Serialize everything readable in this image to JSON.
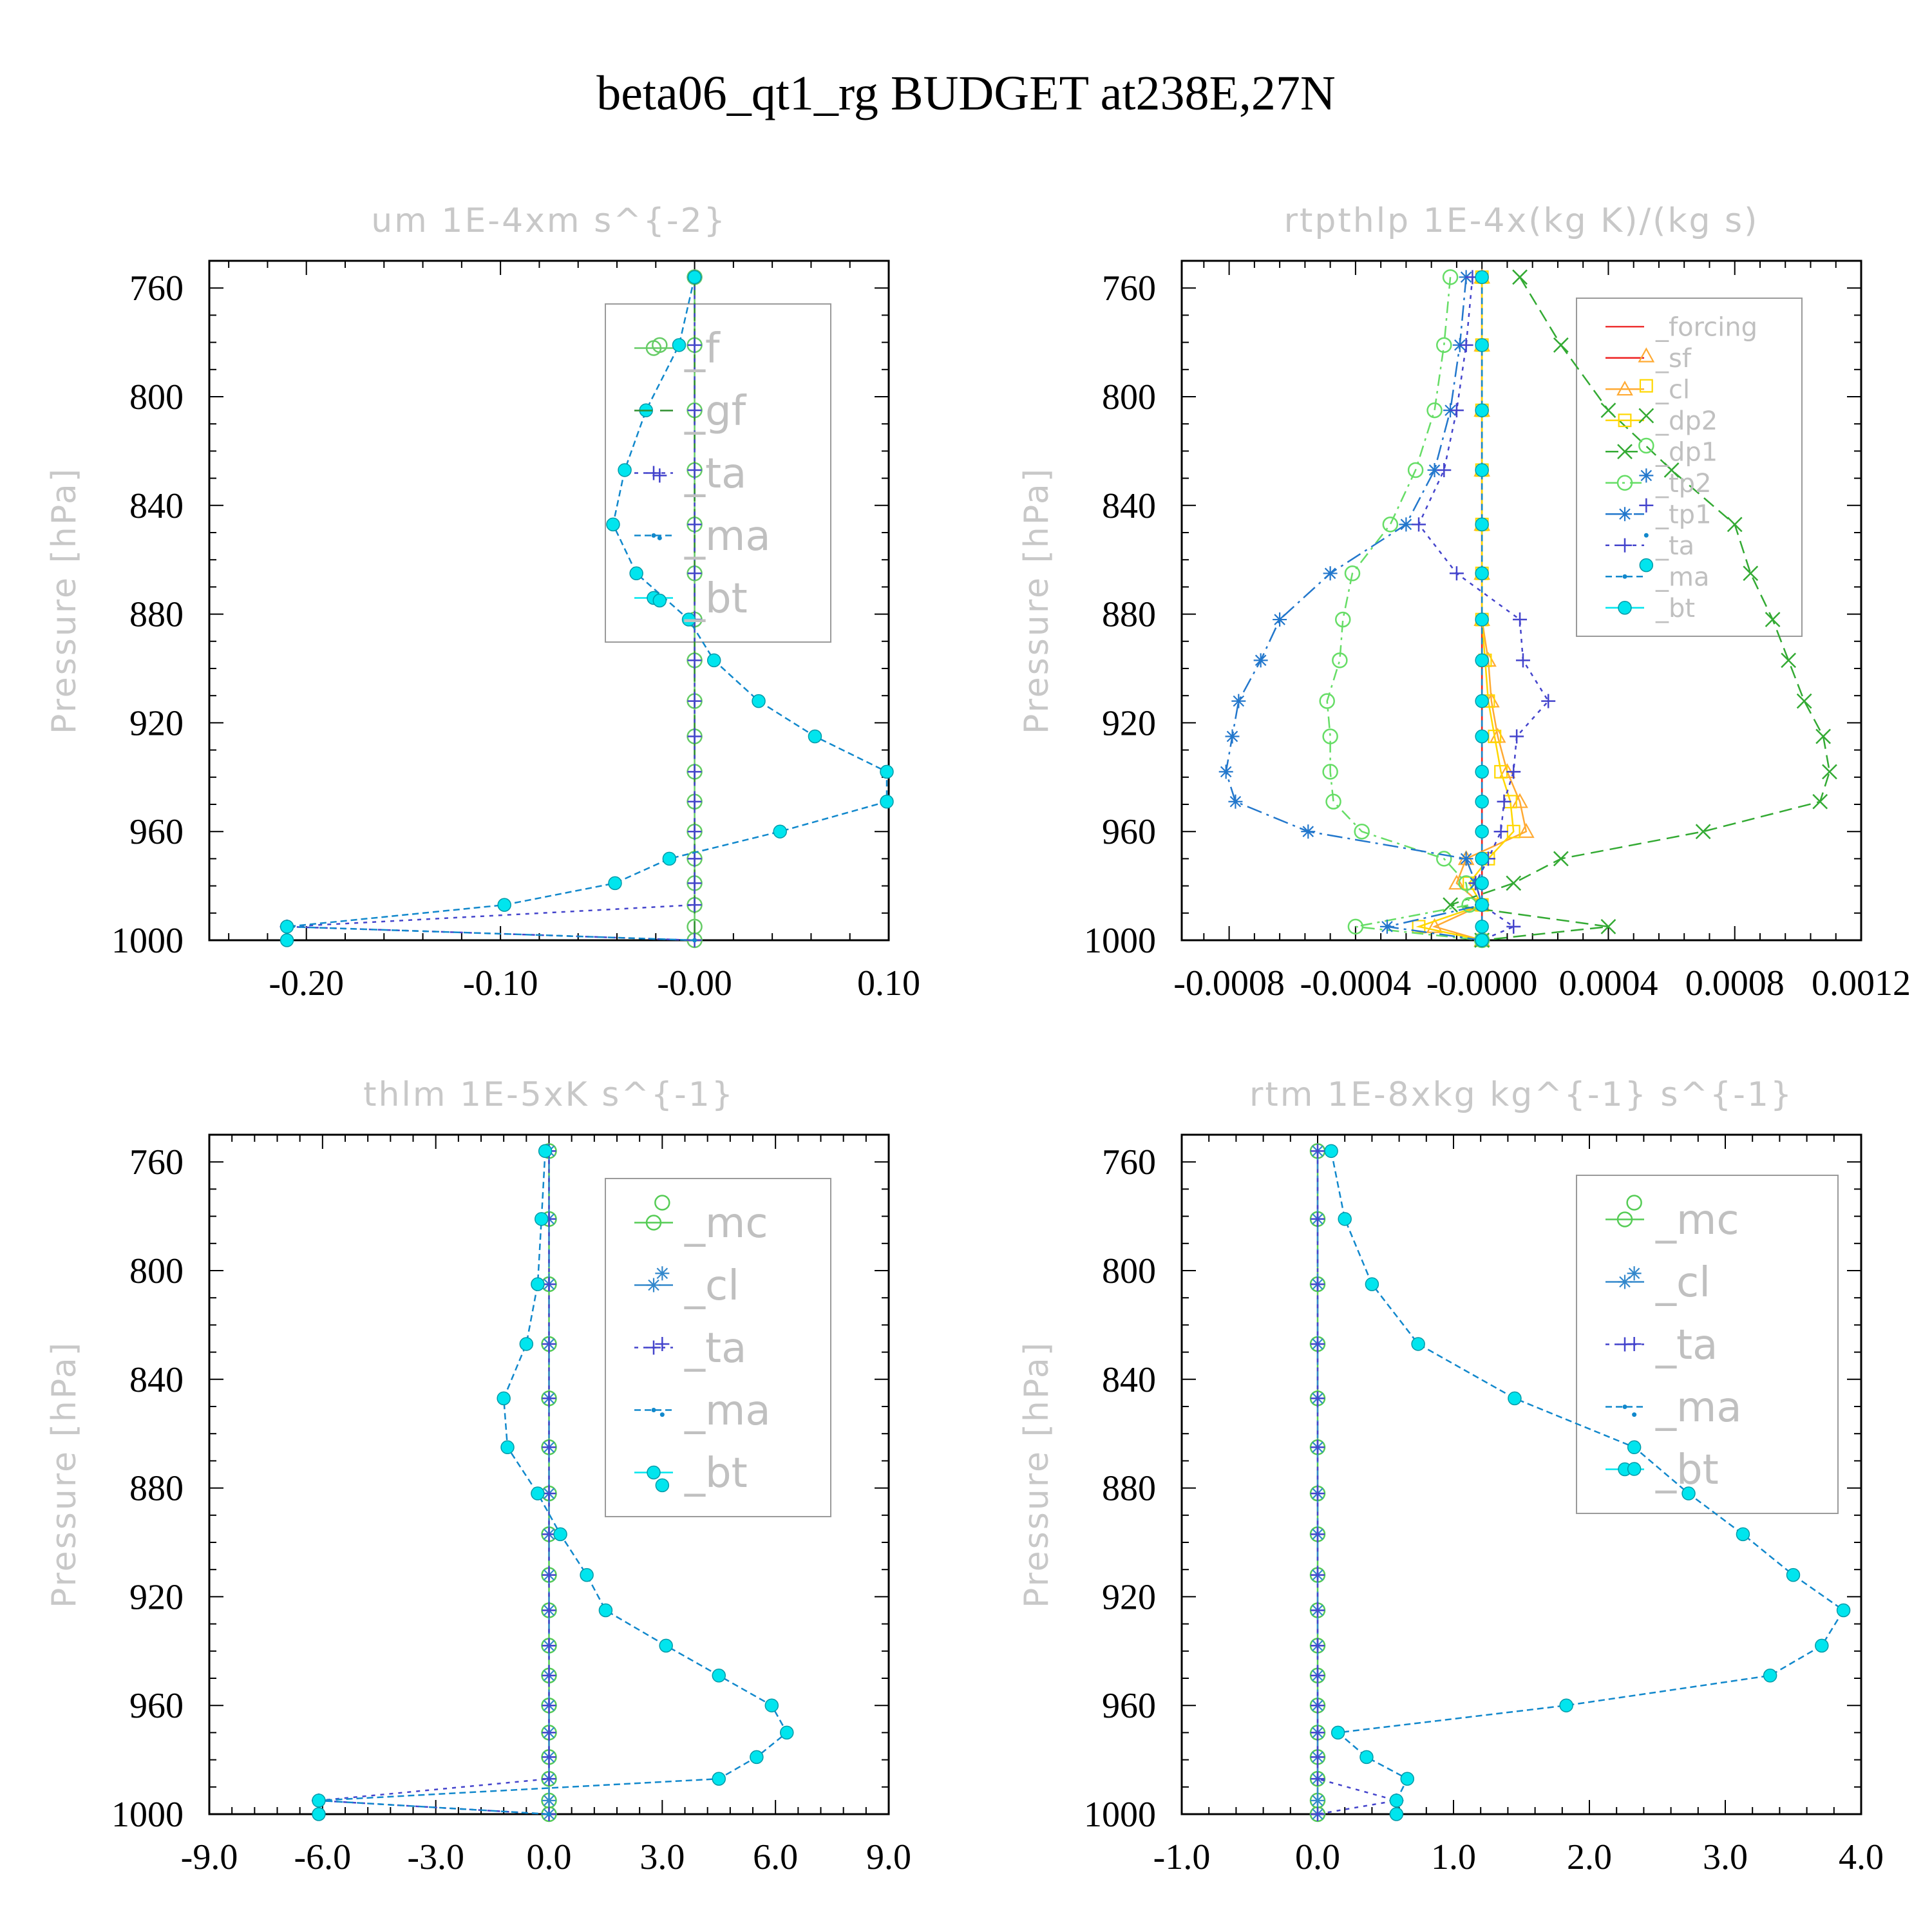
{
  "title": "beta06_qt1_rg  BUDGET at238E,27N",
  "colors": {
    "forcing": "#ee3333",
    "sf": "#ee2222",
    "cl_orange": "#ffaa33",
    "dp2": "#ffd700",
    "dp1": "#33aa33",
    "tp2": "#66dd66",
    "tp1": "#2277cc",
    "ta": "#4444cc",
    "ma": "#1188cc",
    "bt": "#00e5ee",
    "mc": "#55cc55",
    "cl": "#3388cc",
    "f": "#66cc66",
    "gf": "#2f8f2f"
  },
  "chart_data": [
    {
      "type": "line",
      "title": "um  1E-4xm s^{-2}",
      "ylabel": "Pressure [hPa]",
      "xlim": [
        -0.25,
        0.1
      ],
      "ylim": [
        1000,
        750
      ],
      "xticks": [
        "-0.20",
        "-0.10",
        "-0.00",
        "0.10"
      ],
      "xtick_values": [
        -0.2,
        -0.1,
        0.0,
        0.1
      ],
      "yticks": [
        "760",
        "800",
        "840",
        "880",
        "920",
        "960",
        "1000"
      ],
      "ytick_values": [
        760,
        800,
        840,
        880,
        920,
        960,
        1000
      ],
      "legend_font": 64,
      "pressure": [
        756,
        781,
        805,
        827,
        847,
        865,
        882,
        897,
        912,
        925,
        938,
        949,
        960,
        970,
        979,
        987,
        995,
        1000
      ],
      "series": [
        {
          "name": "_f",
          "color": "#66cc66",
          "marker": "circle",
          "dash": "",
          "values": [
            0,
            0,
            0,
            0,
            0,
            0,
            0,
            0,
            0,
            0,
            0,
            0,
            0,
            0,
            0,
            0,
            0,
            0
          ]
        },
        {
          "name": "_gf",
          "color": "#2f8f2f",
          "marker": "none",
          "dash": "28,12",
          "values": [
            0,
            0,
            0,
            0,
            0,
            0,
            0,
            0,
            0,
            0,
            0,
            0,
            0,
            0,
            0,
            0,
            0,
            0
          ]
        },
        {
          "name": "_ta",
          "color": "#4444cc",
          "marker": "plus",
          "dash": "6,8",
          "values": [
            0,
            0,
            0,
            0,
            0,
            0,
            0,
            0,
            0,
            0,
            0,
            0,
            0,
            0,
            0,
            0,
            -0.21,
            0
          ]
        },
        {
          "name": "_ma",
          "color": "#1188cc",
          "marker": "dot",
          "dash": "10,6",
          "values": [
            0,
            -0.008,
            -0.025,
            -0.036,
            -0.042,
            -0.03,
            -0.003,
            0.01,
            0.033,
            0.062,
            0.099,
            0.099,
            0.044,
            -0.013,
            -0.041,
            -0.098,
            -0.21,
            0
          ]
        },
        {
          "name": "_bt",
          "color": "#00e5ee",
          "marker": "bigdot",
          "dash": "",
          "nolink": true,
          "values": [
            0,
            -0.008,
            -0.025,
            -0.036,
            -0.042,
            -0.03,
            -0.003,
            0.01,
            0.033,
            0.062,
            0.099,
            0.099,
            0.044,
            -0.013,
            -0.041,
            -0.098,
            -0.21,
            -0.21
          ]
        }
      ],
      "extra_markers": [
        {
          "series": "_f",
          "x": -0.018,
          "p": 781
        },
        {
          "series": "_gf",
          "x": -0.018,
          "p": 805
        },
        {
          "series": "_ta",
          "x": -0.018,
          "p": 829
        },
        {
          "series": "_ma",
          "x": -0.018,
          "p": 852
        },
        {
          "series": "_bt",
          "x": -0.018,
          "p": 875
        }
      ]
    },
    {
      "type": "line",
      "title": "rtpthlp  1E-4x(kg K)/(kg s)",
      "ylabel": "Pressure [hPa]",
      "xlim": [
        -0.00095,
        0.0012
      ],
      "ylim": [
        1000,
        750
      ],
      "xticks": [
        "-0.0008",
        "-0.0004",
        "-0.0000",
        "0.0004",
        "0.0008",
        "0.0012"
      ],
      "xtick_values": [
        -0.0008,
        -0.0004,
        0.0,
        0.0004,
        0.0008,
        0.0012
      ],
      "yticks": [
        "760",
        "800",
        "840",
        "880",
        "920",
        "960",
        "1000"
      ],
      "ytick_values": [
        760,
        800,
        840,
        880,
        920,
        960,
        1000
      ],
      "legend_font": 40,
      "pressure": [
        756,
        781,
        805,
        827,
        847,
        865,
        882,
        897,
        912,
        925,
        938,
        949,
        960,
        970,
        979,
        987,
        995,
        1000
      ],
      "series": [
        {
          "name": "_forcing",
          "color": "#ee3333",
          "marker": "none",
          "dash": "",
          "values": [
            0,
            0,
            0,
            0,
            0,
            0,
            0,
            0,
            0,
            0,
            0,
            0,
            0,
            0,
            0,
            0,
            0,
            0
          ]
        },
        {
          "name": "_sf",
          "color": "#ee2222",
          "marker": "none",
          "dash": "",
          "values": [
            0,
            0,
            0,
            0,
            0,
            0,
            0,
            0,
            0,
            0,
            0,
            0,
            0,
            0,
            0,
            0,
            0,
            0
          ]
        },
        {
          "name": "_cl",
          "color": "#ffaa33",
          "marker": "triangle",
          "dash": "",
          "values": [
            0,
            0,
            0,
            0,
            0,
            0,
            0,
            2e-05,
            3e-05,
            5e-05,
            8e-05,
            0.00012,
            0.00014,
            -5e-05,
            -8e-05,
            0,
            -0.00015,
            0
          ]
        },
        {
          "name": "_dp2",
          "color": "#ffd700",
          "marker": "square",
          "dash": "",
          "values": [
            0,
            0,
            0,
            0,
            0,
            0,
            0,
            1e-05,
            2e-05,
            4e-05,
            6e-05,
            9e-05,
            0.0001,
            2e-05,
            -4e-05,
            0,
            -0.0002,
            0
          ]
        },
        {
          "name": "_dp1",
          "color": "#33aa33",
          "marker": "x",
          "dash": "20,10",
          "values": [
            0.00012,
            0.00025,
            0.0004,
            0.0006,
            0.0008,
            0.00085,
            0.00092,
            0.00097,
            0.00102,
            0.00108,
            0.0011,
            0.00107,
            0.0007,
            0.00025,
            0.0001,
            -0.0001,
            0.0004,
            0
          ]
        },
        {
          "name": "_tp2",
          "color": "#66dd66",
          "marker": "circle",
          "dash": "18,8,4,8",
          "values": [
            -0.0001,
            -0.00012,
            -0.00015,
            -0.00021,
            -0.00029,
            -0.00041,
            -0.00044,
            -0.00045,
            -0.00049,
            -0.00048,
            -0.00048,
            -0.00047,
            -0.00038,
            -0.00012,
            -5e-05,
            -4e-05,
            -0.0004,
            0
          ]
        },
        {
          "name": "_tp1",
          "color": "#2277cc",
          "marker": "star",
          "dash": "24,8,4,8",
          "values": [
            -5e-05,
            -7e-05,
            -0.0001,
            -0.00015,
            -0.00024,
            -0.00048,
            -0.00064,
            -0.0007,
            -0.00077,
            -0.00079,
            -0.00081,
            -0.00078,
            -0.00055,
            -5e-05,
            -2e-05,
            0,
            -0.0003,
            0
          ]
        },
        {
          "name": "_ta",
          "color": "#4444cc",
          "marker": "plus",
          "dash": "6,8",
          "values": [
            -3e-05,
            -5e-05,
            -8e-05,
            -0.00012,
            -0.0002,
            -8e-05,
            0.00012,
            0.00013,
            0.00021,
            0.00011,
            0.0001,
            7e-05,
            6e-05,
            2e-05,
            -2e-05,
            0,
            0.0001,
            0
          ]
        },
        {
          "name": "_ma",
          "color": "#1188cc",
          "marker": "dot",
          "dash": "10,6",
          "values": [
            0,
            0,
            0,
            0,
            0,
            0,
            0,
            0,
            0,
            0,
            0,
            0,
            0,
            0,
            0,
            0,
            0,
            0
          ]
        },
        {
          "name": "_bt",
          "color": "#00e5ee",
          "marker": "bigdot",
          "dash": "",
          "nolink": true,
          "values": [
            0,
            0,
            0,
            0,
            0,
            0,
            0,
            0,
            0,
            0,
            0,
            0,
            0,
            0,
            0,
            0,
            0,
            0
          ]
        }
      ],
      "extra_markers": [
        {
          "series": "_forcing",
          "x": 0.00052,
          "p": 763
        },
        {
          "series": "_sf",
          "x": 0.00052,
          "p": 774
        },
        {
          "series": "_cl",
          "x": 0.00052,
          "p": 785
        },
        {
          "series": "_dp2",
          "x": 0.00052,
          "p": 796
        },
        {
          "series": "_dp1",
          "x": 0.00052,
          "p": 807
        },
        {
          "series": "_tp2",
          "x": 0.00052,
          "p": 818
        },
        {
          "series": "_tp1",
          "x": 0.00052,
          "p": 829
        },
        {
          "series": "_ta",
          "x": 0.00052,
          "p": 840
        },
        {
          "series": "_ma",
          "x": 0.00052,
          "p": 851
        },
        {
          "series": "_bt",
          "x": 0.00052,
          "p": 862
        }
      ]
    },
    {
      "type": "line",
      "title": "thlm  1E-5xK s^{-1}",
      "ylabel": "Pressure [hPa]",
      "xlim": [
        -9.0,
        9.0
      ],
      "ylim": [
        1000,
        750
      ],
      "xticks": [
        "-9.0",
        "-6.0",
        "-3.0",
        "0.0",
        "3.0",
        "6.0",
        "9.0"
      ],
      "xtick_values": [
        -9,
        -6,
        -3,
        0,
        3,
        6,
        9
      ],
      "yticks": [
        "760",
        "800",
        "840",
        "880",
        "920",
        "960",
        "1000"
      ],
      "ytick_values": [
        760,
        800,
        840,
        880,
        920,
        960,
        1000
      ],
      "legend_font": 64,
      "pressure": [
        756,
        781,
        805,
        827,
        847,
        865,
        882,
        897,
        912,
        925,
        938,
        949,
        960,
        970,
        979,
        987,
        995,
        1000
      ],
      "series": [
        {
          "name": "_mc",
          "color": "#55cc55",
          "marker": "circle",
          "dash": "",
          "values": [
            0,
            0,
            0,
            0,
            0,
            0,
            0,
            0,
            0,
            0,
            0,
            0,
            0,
            0,
            0,
            0,
            0,
            0
          ]
        },
        {
          "name": "_cl",
          "color": "#3388cc",
          "marker": "star",
          "dash": "28,10",
          "values": [
            0,
            0,
            0,
            0,
            0,
            0,
            0,
            0,
            0,
            0,
            0,
            0,
            0,
            0,
            0,
            0,
            0,
            0
          ]
        },
        {
          "name": "_ta",
          "color": "#4444cc",
          "marker": "plus",
          "dash": "6,8",
          "values": [
            0,
            0,
            0,
            0,
            0,
            0,
            0,
            0,
            0,
            0,
            0,
            0,
            0,
            0,
            0,
            0,
            -6.1,
            0
          ]
        },
        {
          "name": "_ma",
          "color": "#1188cc",
          "marker": "dot",
          "dash": "10,6",
          "values": [
            -0.1,
            -0.2,
            -0.3,
            -0.6,
            -1.2,
            -1.1,
            -0.3,
            0.3,
            1.0,
            1.5,
            3.1,
            4.5,
            5.9,
            6.3,
            5.5,
            4.5,
            -6.1,
            0
          ]
        },
        {
          "name": "_bt",
          "color": "#00e5ee",
          "marker": "bigdot",
          "dash": "",
          "nolink": true,
          "values": [
            -0.1,
            -0.2,
            -0.3,
            -0.6,
            -1.2,
            -1.1,
            -0.3,
            0.3,
            1.0,
            1.5,
            3.1,
            4.5,
            5.9,
            6.3,
            5.5,
            4.5,
            -6.1,
            -6.1
          ]
        }
      ],
      "extra_markers": [
        {
          "series": "_mc",
          "x": 3.0,
          "p": 775
        },
        {
          "series": "_cl",
          "x": 3.0,
          "p": 801
        },
        {
          "series": "_ta",
          "x": 3.0,
          "p": 827
        },
        {
          "series": "_ma",
          "x": 3.0,
          "p": 853
        },
        {
          "series": "_bt",
          "x": 3.0,
          "p": 879
        }
      ]
    },
    {
      "type": "line",
      "title": "rtm  1E-8xkg kg^{-1} s^{-1}",
      "ylabel": "Pressure [hPa]",
      "xlim": [
        -1.0,
        4.0
      ],
      "ylim": [
        1000,
        750
      ],
      "xticks": [
        "-1.0",
        "0.0",
        "1.0",
        "2.0",
        "3.0",
        "4.0"
      ],
      "xtick_values": [
        -1,
        0,
        1,
        2,
        3,
        4
      ],
      "yticks": [
        "760",
        "800",
        "840",
        "880",
        "920",
        "960",
        "1000"
      ],
      "ytick_values": [
        760,
        800,
        840,
        880,
        920,
        960,
        1000
      ],
      "legend_font": 64,
      "pressure": [
        756,
        781,
        805,
        827,
        847,
        865,
        882,
        897,
        912,
        925,
        938,
        949,
        960,
        970,
        979,
        987,
        995,
        1000
      ],
      "series": [
        {
          "name": "_mc",
          "color": "#55cc55",
          "marker": "circle",
          "dash": "",
          "values": [
            0,
            0,
            0,
            0,
            0,
            0,
            0,
            0,
            0,
            0,
            0,
            0,
            0,
            0,
            0,
            0,
            0,
            0
          ]
        },
        {
          "name": "_cl",
          "color": "#3388cc",
          "marker": "star",
          "dash": "28,10",
          "values": [
            0,
            0,
            0,
            0,
            0,
            0,
            0,
            0,
            0,
            0,
            0,
            0,
            0,
            0,
            0,
            0,
            0,
            0
          ]
        },
        {
          "name": "_ta",
          "color": "#4444cc",
          "marker": "plus",
          "dash": "6,8",
          "values": [
            0,
            0,
            0,
            0,
            0,
            0,
            0,
            0,
            0,
            0,
            0,
            0,
            0,
            0,
            0,
            0,
            0.58,
            0
          ]
        },
        {
          "name": "_ma",
          "color": "#1188cc",
          "marker": "dot",
          "dash": "10,6",
          "values": [
            0.1,
            0.2,
            0.4,
            0.74,
            1.45,
            2.33,
            2.73,
            3.13,
            3.5,
            3.87,
            3.71,
            3.33,
            1.83,
            0.15,
            0.36,
            0.66,
            0.58,
            0.58
          ]
        },
        {
          "name": "_bt",
          "color": "#00e5ee",
          "marker": "bigdot",
          "dash": "",
          "nolink": true,
          "values": [
            0.1,
            0.2,
            0.4,
            0.74,
            1.45,
            2.33,
            2.73,
            3.13,
            3.5,
            3.87,
            3.71,
            3.33,
            1.83,
            0.15,
            0.36,
            0.66,
            0.58,
            0.58
          ]
        }
      ],
      "extra_markers": [
        {
          "series": "_mc",
          "x": 2.33,
          "p": 775
        },
        {
          "series": "_cl",
          "x": 2.33,
          "p": 801
        },
        {
          "series": "_ta",
          "x": 2.33,
          "p": 827
        },
        {
          "series": "_ma",
          "x": 2.33,
          "p": 853
        },
        {
          "series": "_bt",
          "x": 2.33,
          "p": 873
        }
      ]
    }
  ]
}
